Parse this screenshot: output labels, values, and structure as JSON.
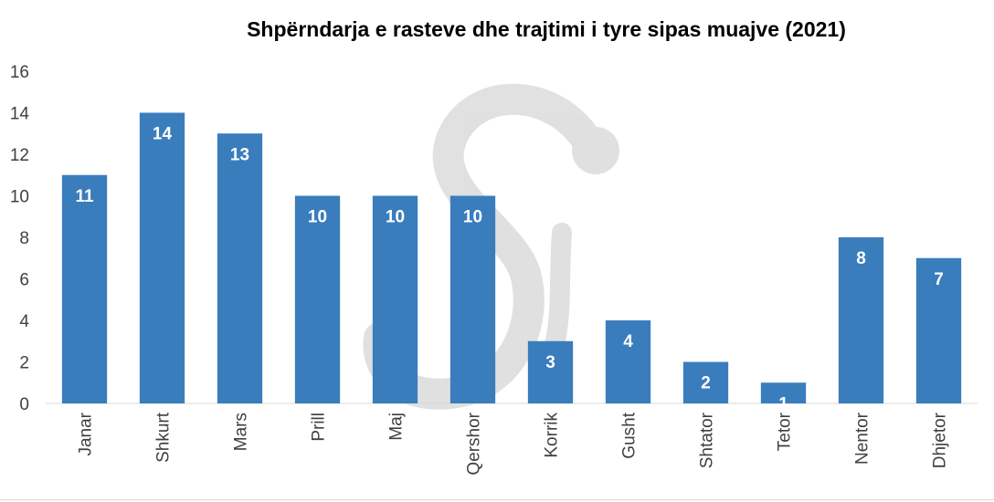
{
  "chart_data": {
    "type": "bar",
    "title": "Shpërndarja e rasteve dhe trajtimi i tyre sipas muajve (2021)",
    "xlabel": "",
    "ylabel": "",
    "categories": [
      "Janar",
      "Shkurt",
      "Mars",
      "Prill",
      "Maj",
      "Qershor",
      "Korrik",
      "Gusht",
      "Shtator",
      "Tetor",
      "Nentor",
      "Dhjetor"
    ],
    "values": [
      11,
      14,
      13,
      10,
      10,
      10,
      3,
      4,
      2,
      1,
      8,
      7
    ],
    "ylim": [
      0,
      16
    ],
    "yticks": [
      0,
      2,
      4,
      6,
      8,
      10,
      12,
      14,
      16
    ],
    "grid": false,
    "legend": "none",
    "bar_color": "#3a7dbd",
    "data_labels": true
  },
  "watermark": {
    "text": "Si",
    "color": "#d9d9d9"
  }
}
